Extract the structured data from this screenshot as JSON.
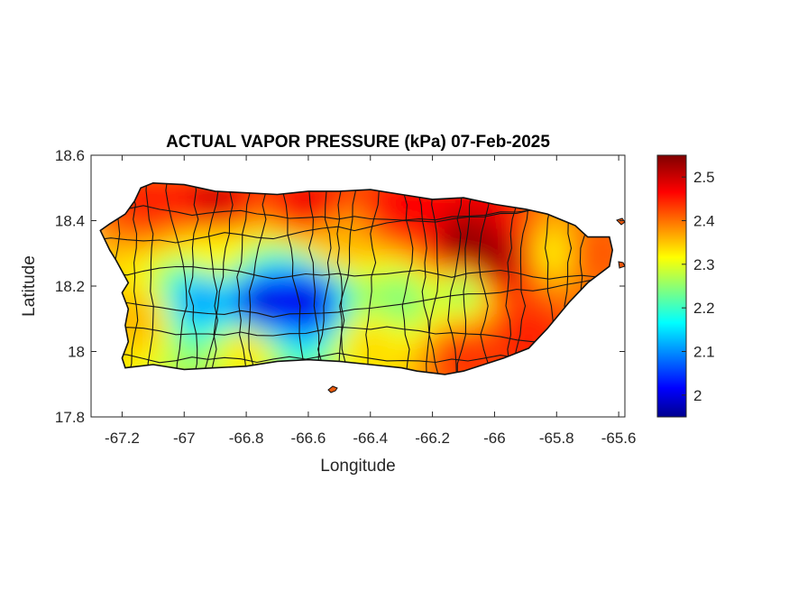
{
  "chart_data": {
    "type": "heatmap",
    "title": "ACTUAL VAPOR PRESSURE (kPa) 07-Feb-2025",
    "xlabel": "Longitude",
    "ylabel": "Latitude",
    "xlim": [
      -67.3,
      -65.58
    ],
    "ylim": [
      17.8,
      18.6
    ],
    "xticks": [
      -67.2,
      -67,
      -66.8,
      -66.6,
      -66.4,
      -66.2,
      -66,
      -65.8,
      -65.6
    ],
    "xtick_labels": [
      "-67.2",
      "-67",
      "-66.8",
      "-66.6",
      "-66.4",
      "-66.2",
      "-66",
      "-65.8",
      "-65.6"
    ],
    "yticks": [
      17.8,
      18,
      18.2,
      18.4,
      18.6
    ],
    "ytick_labels": [
      "17.8",
      "18",
      "18.2",
      "18.4",
      "18.6"
    ],
    "colorbar": {
      "colormap": "jet",
      "range": [
        1.95,
        2.55
      ],
      "ticks": [
        2,
        2.1,
        2.2,
        2.3,
        2.4,
        2.5
      ],
      "tick_labels": [
        "2",
        "2.1",
        "2.2",
        "2.3",
        "2.4",
        "2.5"
      ]
    },
    "island_outline": [
      [
        -67.27,
        18.37
      ],
      [
        -67.24,
        18.39
      ],
      [
        -67.19,
        18.42
      ],
      [
        -67.16,
        18.46
      ],
      [
        -67.14,
        18.5
      ],
      [
        -67.1,
        18.515
      ],
      [
        -67.0,
        18.51
      ],
      [
        -66.9,
        18.49
      ],
      [
        -66.8,
        18.485
      ],
      [
        -66.7,
        18.48
      ],
      [
        -66.6,
        18.49
      ],
      [
        -66.5,
        18.49
      ],
      [
        -66.4,
        18.495
      ],
      [
        -66.3,
        18.48
      ],
      [
        -66.2,
        18.465
      ],
      [
        -66.1,
        18.47
      ],
      [
        -66.0,
        18.45
      ],
      [
        -65.9,
        18.435
      ],
      [
        -65.83,
        18.42
      ],
      [
        -65.74,
        18.385
      ],
      [
        -65.7,
        18.35
      ],
      [
        -65.63,
        18.35
      ],
      [
        -65.62,
        18.31
      ],
      [
        -65.63,
        18.26
      ],
      [
        -65.7,
        18.21
      ],
      [
        -65.76,
        18.15
      ],
      [
        -65.83,
        18.07
      ],
      [
        -65.89,
        18.01
      ],
      [
        -65.97,
        17.98
      ],
      [
        -66.1,
        17.94
      ],
      [
        -66.16,
        17.93
      ],
      [
        -66.25,
        17.94
      ],
      [
        -66.3,
        17.95
      ],
      [
        -66.4,
        17.96
      ],
      [
        -66.5,
        17.97
      ],
      [
        -66.6,
        17.975
      ],
      [
        -66.7,
        17.97
      ],
      [
        -66.8,
        17.955
      ],
      [
        -66.9,
        17.95
      ],
      [
        -67.0,
        17.945
      ],
      [
        -67.1,
        17.96
      ],
      [
        -67.19,
        17.95
      ],
      [
        -67.2,
        17.98
      ],
      [
        -67.18,
        18.03
      ],
      [
        -67.19,
        18.08
      ],
      [
        -67.18,
        18.13
      ],
      [
        -67.2,
        18.18
      ],
      [
        -67.18,
        18.21
      ],
      [
        -67.22,
        18.28
      ],
      [
        -67.24,
        18.31
      ],
      [
        -67.27,
        18.37
      ]
    ],
    "field_samples": [
      {
        "lon": -67.1,
        "lat": 18.47,
        "value": 2.45
      },
      {
        "lon": -66.9,
        "lat": 18.46,
        "value": 2.5
      },
      {
        "lon": -66.6,
        "lat": 18.46,
        "value": 2.48
      },
      {
        "lon": -66.3,
        "lat": 18.44,
        "value": 2.47
      },
      {
        "lon": -66.1,
        "lat": 18.32,
        "value": 2.55
      },
      {
        "lon": -66.0,
        "lat": 18.28,
        "value": 2.54
      },
      {
        "lon": -65.8,
        "lat": 18.3,
        "value": 2.32
      },
      {
        "lon": -65.7,
        "lat": 18.3,
        "value": 2.42
      },
      {
        "lon": -66.5,
        "lat": 18.33,
        "value": 2.36
      },
      {
        "lon": -66.9,
        "lat": 18.3,
        "value": 2.32
      },
      {
        "lon": -66.75,
        "lat": 18.14,
        "value": 1.98
      },
      {
        "lon": -66.6,
        "lat": 18.16,
        "value": 1.99
      },
      {
        "lon": -66.95,
        "lat": 18.16,
        "value": 2.1
      },
      {
        "lon": -66.3,
        "lat": 18.16,
        "value": 2.24
      },
      {
        "lon": -66.1,
        "lat": 18.19,
        "value": 2.25
      },
      {
        "lon": -67.15,
        "lat": 18.1,
        "value": 2.36
      },
      {
        "lon": -66.8,
        "lat": 18.01,
        "value": 2.34
      },
      {
        "lon": -66.4,
        "lat": 18.02,
        "value": 2.34
      },
      {
        "lon": -66.1,
        "lat": 17.98,
        "value": 2.44
      },
      {
        "lon": -65.9,
        "lat": 18.05,
        "value": 2.45
      }
    ]
  }
}
